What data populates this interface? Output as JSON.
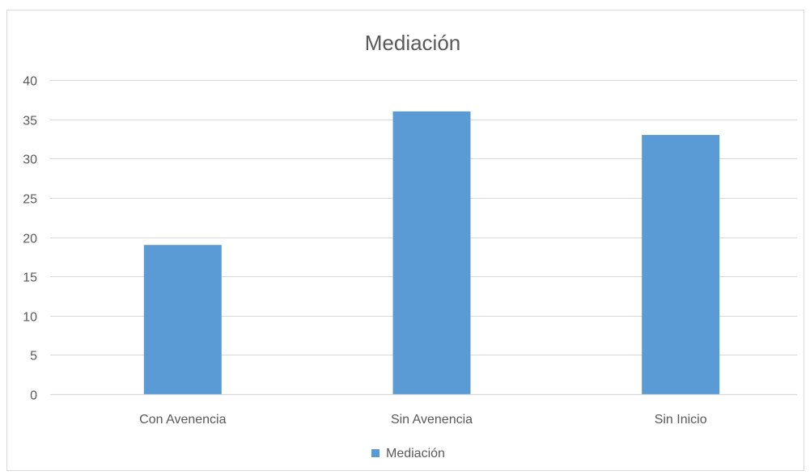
{
  "chart_data": {
    "type": "bar",
    "title": "Mediación",
    "categories": [
      "Con Avenencia",
      "Sin Avenencia",
      "Sin Inicio"
    ],
    "series": [
      {
        "name": "Mediación",
        "values": [
          19,
          36,
          33
        ],
        "color": "#5b9bd5"
      }
    ],
    "yticks": [
      "0",
      "5",
      "10",
      "15",
      "20",
      "25",
      "30",
      "35",
      "40"
    ],
    "ylim": [
      0,
      40
    ],
    "grid": true,
    "legend_position": "bottom",
    "colors": {
      "bar": "#5b9bd5",
      "grid": "#d9d9d9",
      "text": "#595959",
      "frame": "#d9d9d9"
    }
  }
}
